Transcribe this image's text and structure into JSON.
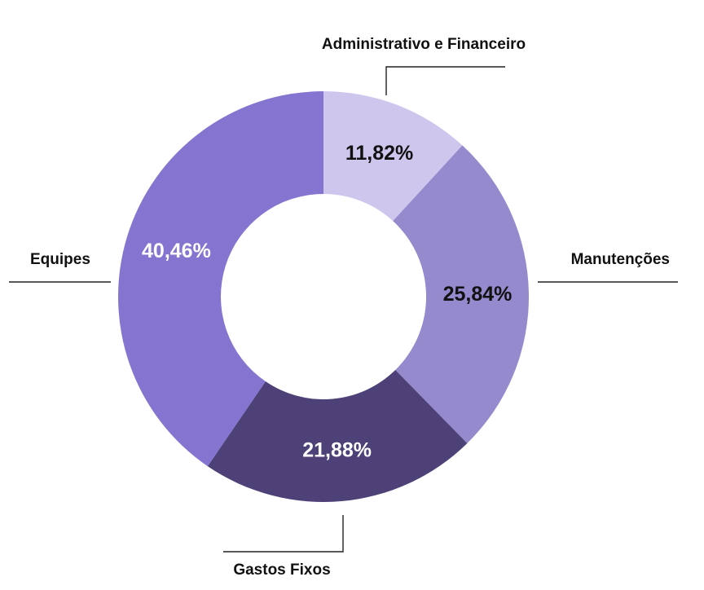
{
  "chart_data": {
    "type": "pie",
    "variant": "donut",
    "legend": "none",
    "slices": [
      {
        "label": "Administrativo e Financeiro",
        "value": 11.82,
        "display": "11,82%",
        "color": "#cfc6ee",
        "text_color": "#111111"
      },
      {
        "label": "Manutenções",
        "value": 25.84,
        "display": "25,84%",
        "color": "#958acd",
        "text_color": "#111111"
      },
      {
        "label": "Gastos Fixos",
        "value": 21.88,
        "display": "21,88%",
        "color": "#4d4178",
        "text_color": "#ffffff"
      },
      {
        "label": "Equipes",
        "value": 40.46,
        "display": "40,46%",
        "color": "#8574d0",
        "text_color": "#ffffff"
      }
    ]
  }
}
